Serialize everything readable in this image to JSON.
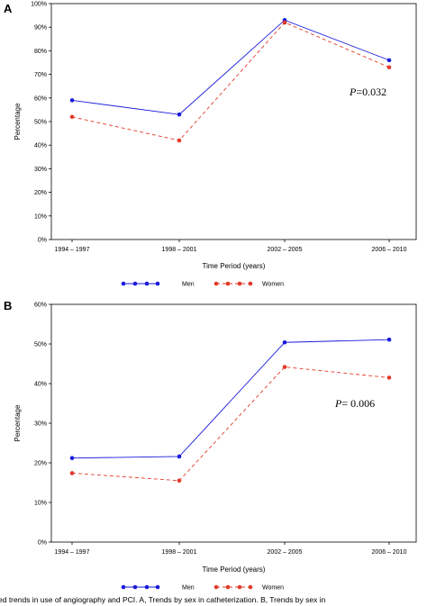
{
  "chart_data": [
    {
      "type": "line",
      "panel": "A",
      "categories": [
        "1994 – 1997",
        "1998 – 2001",
        "2002 – 2005",
        "2006 – 2010"
      ],
      "yticks": [
        "0%",
        "10%",
        "20%",
        "30%",
        "40%",
        "50%",
        "60%",
        "70%",
        "80%",
        "90%",
        "100%"
      ],
      "ylim": [
        0,
        100
      ],
      "xlabel": "Time Period (years)",
      "ylabel": "Percentage",
      "series": [
        {
          "name": "Men",
          "values": [
            59,
            53,
            93,
            76
          ],
          "color": "#1a1adb",
          "dash": false
        },
        {
          "name": "Women",
          "values": [
            52,
            42,
            92,
            73
          ],
          "color": "#e23a2a",
          "dash": true
        }
      ],
      "p_label": "P",
      "p_value": "=0.032"
    },
    {
      "type": "line",
      "panel": "B",
      "categories": [
        "1994 – 1997",
        "1998 – 2001",
        "2002 – 2005",
        "2006 – 2010"
      ],
      "yticks": [
        "0%",
        "10%",
        "20%",
        "30%",
        "40%",
        "50%",
        "60%"
      ],
      "ylim": [
        0,
        60
      ],
      "xlabel": "Time Period (years)",
      "ylabel": "Percentage",
      "series": [
        {
          "name": "Men",
          "values": [
            21.2,
            21.6,
            50.4,
            51.1
          ],
          "color": "#1a1adb",
          "dash": false
        },
        {
          "name": "Women",
          "values": [
            17.4,
            15.5,
            44.2,
            41.5
          ],
          "color": "#e23a2a",
          "dash": true
        }
      ],
      "p_label": "P",
      "p_value": "= 0.006"
    }
  ],
  "caption": "ed trends in use of angiography and PCI. A, Trends by sex in catheterization. B, Trends by sex in"
}
